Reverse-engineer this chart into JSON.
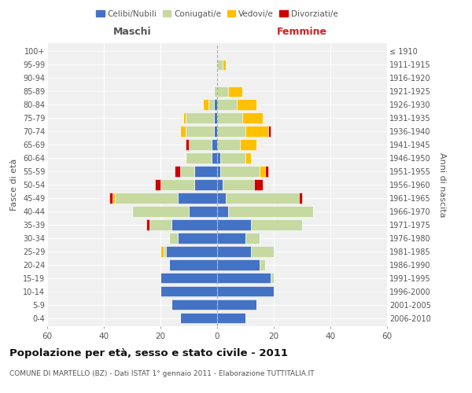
{
  "age_groups": [
    "0-4",
    "5-9",
    "10-14",
    "15-19",
    "20-24",
    "25-29",
    "30-34",
    "35-39",
    "40-44",
    "45-49",
    "50-54",
    "55-59",
    "60-64",
    "65-69",
    "70-74",
    "75-79",
    "80-84",
    "85-89",
    "90-94",
    "95-99",
    "100+"
  ],
  "birth_years": [
    "2006-2010",
    "2001-2005",
    "1996-2000",
    "1991-1995",
    "1986-1990",
    "1981-1985",
    "1976-1980",
    "1971-1975",
    "1966-1970",
    "1961-1965",
    "1956-1960",
    "1951-1955",
    "1946-1950",
    "1941-1945",
    "1936-1940",
    "1931-1935",
    "1926-1930",
    "1921-1925",
    "1916-1920",
    "1911-1915",
    "≤ 1910"
  ],
  "maschi": {
    "celibi": [
      13,
      16,
      20,
      20,
      17,
      18,
      14,
      16,
      10,
      14,
      8,
      8,
      2,
      2,
      1,
      1,
      1,
      0,
      0,
      0,
      0
    ],
    "coniugati": [
      0,
      0,
      0,
      0,
      0,
      1,
      3,
      8,
      20,
      22,
      12,
      5,
      9,
      8,
      10,
      10,
      2,
      1,
      0,
      0,
      0
    ],
    "vedovi": [
      0,
      0,
      0,
      0,
      0,
      1,
      0,
      0,
      0,
      1,
      0,
      0,
      0,
      0,
      2,
      1,
      2,
      0,
      0,
      0,
      0
    ],
    "divorziati": [
      0,
      0,
      0,
      0,
      0,
      0,
      0,
      1,
      0,
      1,
      2,
      2,
      0,
      1,
      0,
      0,
      0,
      0,
      0,
      0,
      0
    ]
  },
  "femmine": {
    "celibi": [
      10,
      14,
      20,
      19,
      15,
      12,
      10,
      12,
      4,
      3,
      2,
      1,
      1,
      0,
      0,
      0,
      0,
      0,
      0,
      0,
      0
    ],
    "coniugati": [
      0,
      0,
      0,
      1,
      2,
      8,
      5,
      18,
      30,
      26,
      11,
      14,
      9,
      8,
      10,
      9,
      7,
      4,
      0,
      2,
      0
    ],
    "vedovi": [
      0,
      0,
      0,
      0,
      0,
      0,
      0,
      0,
      0,
      0,
      0,
      2,
      2,
      6,
      8,
      7,
      7,
      5,
      0,
      1,
      0
    ],
    "divorziati": [
      0,
      0,
      0,
      0,
      0,
      0,
      0,
      0,
      0,
      1,
      3,
      1,
      0,
      0,
      1,
      0,
      0,
      0,
      0,
      0,
      0
    ]
  },
  "xlim": 60,
  "title": "Popolazione per età, sesso e stato civile - 2011",
  "subtitle": "COMUNE DI MARTELLO (BZ) - Dati ISTAT 1° gennaio 2011 - Elaborazione TUTTITALIA.IT",
  "ylabel_left": "Fasce di età",
  "ylabel_right": "Anni di nascita",
  "xlabel_left": "Maschi",
  "xlabel_right": "Femmine",
  "legend_labels": [
    "Celibi/Nubili",
    "Coniugati/e",
    "Vedovi/e",
    "Divorziati/e"
  ],
  "bg_color": "#f0f0f0",
  "bar_color_celibi": "#4472c4",
  "bar_color_coniugati": "#c5d9a0",
  "bar_color_vedovi": "#ffc000",
  "bar_color_divorziati": "#cc0000",
  "grid_color": "#ffffff",
  "text_color": "#555555"
}
